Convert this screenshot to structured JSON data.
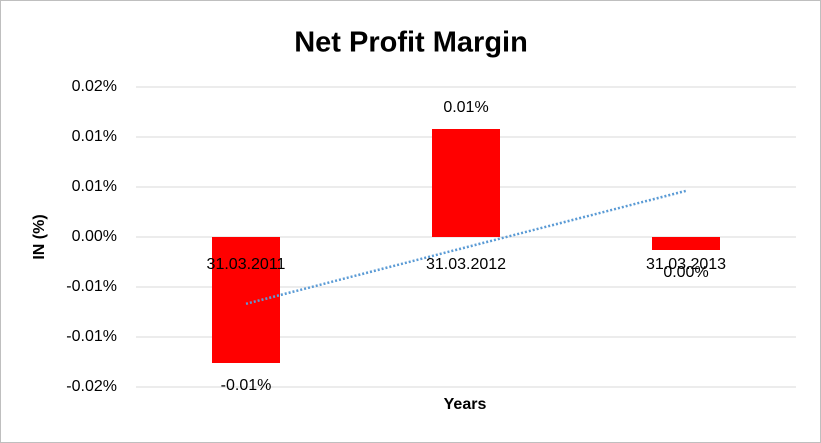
{
  "chart_data": {
    "type": "bar",
    "title": "Net Profit Margin",
    "x_label": "Years",
    "y_label": "IN (%)",
    "categories": [
      "31.03.2011",
      "31.03.2012",
      "31.03.2013"
    ],
    "values": [
      -0.0126,
      0.0108,
      -0.0013
    ],
    "value_labels": [
      "-0.01%",
      "0.01%",
      "0.00%"
    ],
    "color": "#ff0000",
    "trendline": "linear",
    "trendline_color": "#5b9bd5",
    "ylim": [
      -0.015,
      0.015
    ],
    "yticks": [
      {
        "value": -0.015,
        "label": "-0.02%"
      },
      {
        "value": -0.01,
        "label": "-0.01%"
      },
      {
        "value": -0.005,
        "label": "-0.01%"
      },
      {
        "value": 0,
        "label": "0.00%"
      },
      {
        "value": 0.005,
        "label": "0.01%"
      },
      {
        "value": 0.01,
        "label": "0.01%"
      },
      {
        "value": 0.015,
        "label": "0.02%"
      }
    ],
    "grid": true
  }
}
